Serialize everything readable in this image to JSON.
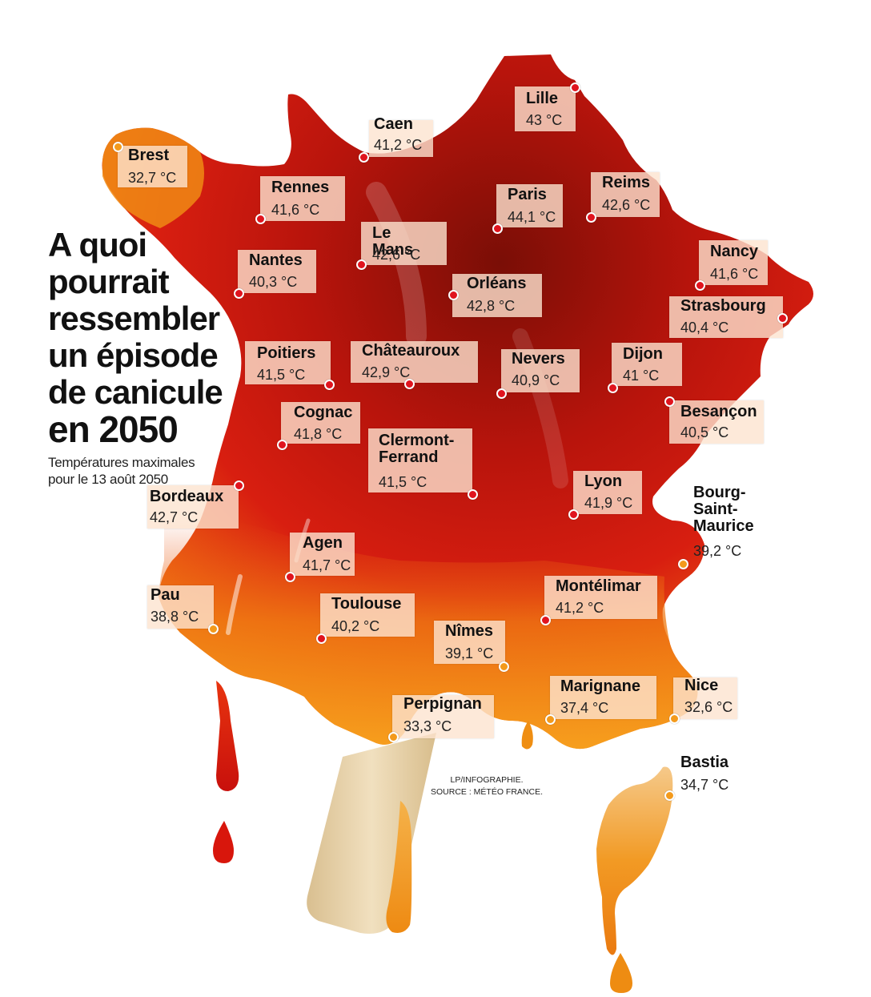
{
  "title": {
    "lines": [
      "A quoi",
      "pourrait",
      "ressembler",
      "un épisode",
      "de canicule",
      "en 2050"
    ],
    "subtitle": "Températures maximales pour le 13 août 2050"
  },
  "credit": {
    "line1": "LP/INFOGRAPHIE.",
    "line2": "SOURCE : MÉTÉO FRANCE."
  },
  "colors": {
    "hot": "#7a0e06",
    "warm": "#c8140e",
    "mild": "#f08a10",
    "cool": "#f6a01c",
    "label_bg": "#fce4d0",
    "dot_red": "#e0141e",
    "dot_orange": "#f39a1c",
    "stick": "#ead3a8"
  },
  "cities": [
    {
      "name": "Lille",
      "temp": "43 °C",
      "dot": "red"
    },
    {
      "name": "Caen",
      "temp": "41,2 °C",
      "dot": "red"
    },
    {
      "name": "Brest",
      "temp": "32,7 °C",
      "dot": "orange"
    },
    {
      "name": "Rennes",
      "temp": "41,6 °C",
      "dot": "red"
    },
    {
      "name": "Paris",
      "temp": "44,1 °C",
      "dot": "red"
    },
    {
      "name": "Reims",
      "temp": "42,6 °C",
      "dot": "red"
    },
    {
      "name": "Le Mans",
      "temp": "42,6 °C",
      "dot": "red"
    },
    {
      "name": "Nantes",
      "temp": "40,3 °C",
      "dot": "red"
    },
    {
      "name": "Nancy",
      "temp": "41,6 °C",
      "dot": "red"
    },
    {
      "name": "Orléans",
      "temp": "42,8 °C",
      "dot": "red"
    },
    {
      "name": "Strasbourg",
      "temp": "40,4 °C",
      "dot": "red"
    },
    {
      "name": "Poitiers",
      "temp": "41,5 °C",
      "dot": "red"
    },
    {
      "name": "Châteauroux",
      "temp": "42,9 °C",
      "dot": "red"
    },
    {
      "name": "Nevers",
      "temp": "40,9 °C",
      "dot": "red"
    },
    {
      "name": "Dijon",
      "temp": "41 °C",
      "dot": "red"
    },
    {
      "name": "Besançon",
      "temp": "40,5 °C",
      "dot": "red"
    },
    {
      "name": "Cognac",
      "temp": "41,8 °C",
      "dot": "red"
    },
    {
      "name": "Clermont-\nFerrand",
      "temp": "41,5 °C",
      "dot": "red"
    },
    {
      "name": "Bordeaux",
      "temp": "42,7 °C",
      "dot": "red"
    },
    {
      "name": "Lyon",
      "temp": "41,9 °C",
      "dot": "red"
    },
    {
      "name": "Bourg-\nSaint-\nMaurice",
      "temp": "39,2 °C",
      "dot": "orange"
    },
    {
      "name": "Agen",
      "temp": "41,7 °C",
      "dot": "red"
    },
    {
      "name": "Pau",
      "temp": "38,8 °C",
      "dot": "orange"
    },
    {
      "name": "Toulouse",
      "temp": "40,2 °C",
      "dot": "red"
    },
    {
      "name": "Montélimar",
      "temp": "41,2 °C",
      "dot": "red"
    },
    {
      "name": "Nîmes",
      "temp": "39,1 °C",
      "dot": "orange"
    },
    {
      "name": "Marignane",
      "temp": "37,4 °C",
      "dot": "orange"
    },
    {
      "name": "Nice",
      "temp": "32,6 °C",
      "dot": "orange"
    },
    {
      "name": "Perpignan",
      "temp": "33,3 °C",
      "dot": "orange"
    },
    {
      "name": "Bastia",
      "temp": "34,7 °C",
      "dot": "orange"
    }
  ]
}
